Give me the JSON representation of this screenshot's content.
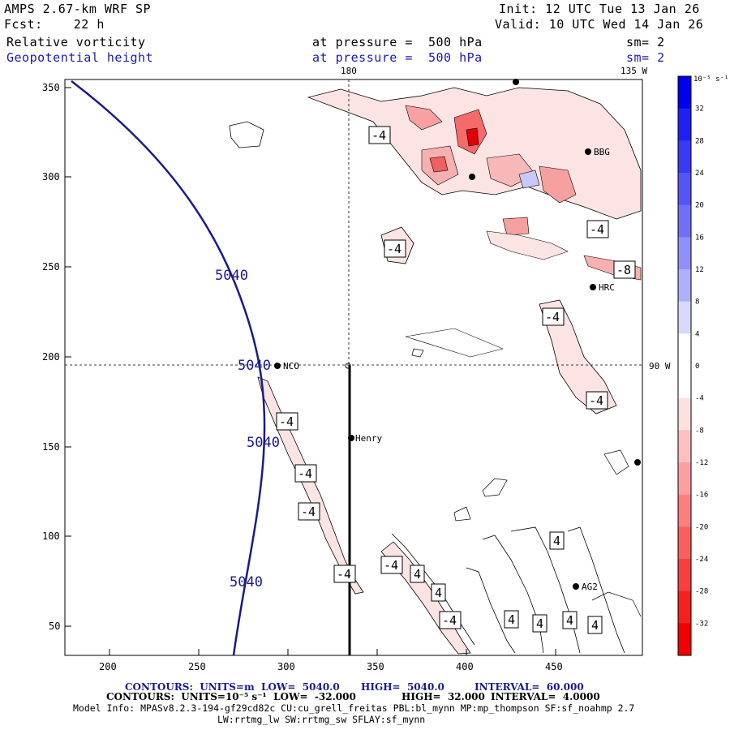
{
  "header": {
    "model": "AMPS 2.67-km WRF SP",
    "init": "Init: 12 UTC Tue 13 Jan 26",
    "forecast": "Fcst:    22 h",
    "valid": "Valid: 10 UTC Wed 14 Jan 26",
    "field1_name": "Relative vorticity",
    "field1_level": "at pressure =  500 hPa",
    "field1_sm": "sm= 2",
    "field2_name": "Geopotential height",
    "field2_level": "at pressure =  500 hPa",
    "field2_sm": "sm= 2"
  },
  "map": {
    "lon_top_180": "180",
    "lon_top_135w": "135 W",
    "lat_right_90w": "90 W",
    "x_ticks": [
      "200",
      "250",
      "300",
      "350",
      "400",
      "450"
    ],
    "y_ticks": [
      "350",
      "300",
      "250",
      "200",
      "150",
      "100",
      "50"
    ],
    "stations": [
      {
        "name": "BBG"
      },
      {
        "name": "HRC"
      },
      {
        "name": "NCO"
      },
      {
        "name": "Henry"
      },
      {
        "name": "AG2"
      }
    ],
    "height_labels": [
      "5040",
      "5040",
      "5040",
      "5040"
    ],
    "vort_labels_neg": [
      "-4",
      "-4",
      "-4",
      "-8",
      "-4",
      "-4",
      "-4",
      "-4",
      "-4",
      "-4",
      "-4",
      "-4"
    ],
    "vort_labels_pos": [
      "4",
      "4",
      "4",
      "4",
      "4",
      "4",
      "4"
    ]
  },
  "colorbar": {
    "unit": "10⁻⁵ s⁻¹",
    "levels": [
      "32",
      "28",
      "24",
      "20",
      "16",
      "12",
      "8",
      "4",
      "0",
      "-4",
      "-8",
      "-12",
      "-16",
      "-20",
      "-24",
      "-28",
      "-32"
    ],
    "colors": [
      "#0000ee",
      "#2020f0",
      "#3a3af2",
      "#5555f4",
      "#7070f6",
      "#9090f8",
      "#b0b0fa",
      "#d8d8fc",
      "#ffffff",
      "#ffffff",
      "#fde0e0",
      "#fcc0c0",
      "#fba0a0",
      "#fa8080",
      "#f86060",
      "#f64040",
      "#f42020",
      "#f00000"
    ]
  },
  "footer": {
    "line1_a": "CONTOURS:  UNITS=m  LOW=  5040.0",
    "line1_b": "HIGH=  5040.0",
    "line1_c": "INTERVAL=  60.000",
    "line2_a": "CONTOURS:  UNITS=10⁻⁵ s⁻¹  LOW=  -32.000",
    "line2_b": "HIGH=  32.000",
    "line2_c": "INTERVAL=  4.0000",
    "line3": "Model Info: MPASv8.2.3-194-gf29cd82c CU:cu_grell_freitas PBL:bl_mynn MP:mp_thompson SF:sf_noahmp 2.7",
    "line4": "LW:rrtmg_lw SW:rrtmg_sw SFLAY:sf_mynn"
  }
}
